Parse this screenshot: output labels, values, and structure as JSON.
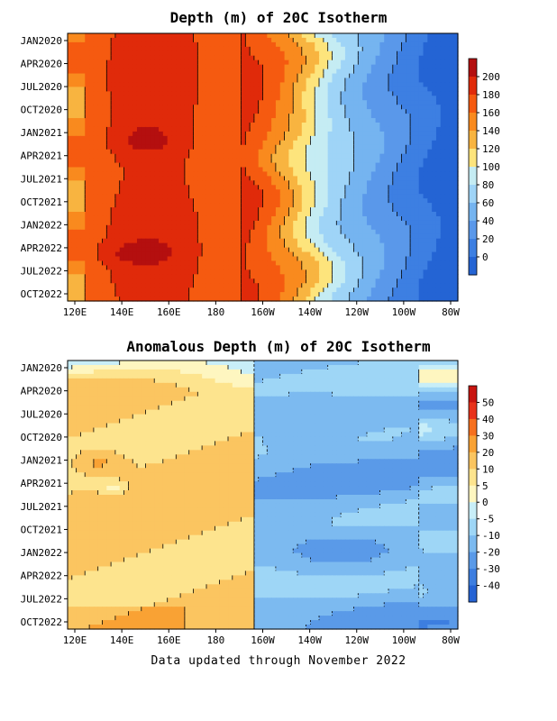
{
  "chart_data": [
    {
      "type": "heatmap",
      "title": "Depth (m) of 20C Isotherm",
      "x_tick_labels": [
        "120E",
        "140E",
        "160E",
        "180",
        "160W",
        "140W",
        "120W",
        "100W",
        "80W"
      ],
      "y_tick_labels": [
        "JAN2020",
        "APR2020",
        "JUL2020",
        "OCT2020",
        "JAN2021",
        "APR2021",
        "JUL2021",
        "OCT2021",
        "JAN2022",
        "APR2022",
        "JUL2022",
        "OCT2022"
      ],
      "colorbar_labels": [
        "200",
        "180",
        "160",
        "140",
        "120",
        "100",
        "80",
        "60",
        "40",
        "20",
        "0"
      ],
      "colorbar_colors": [
        "#b40f0f",
        "#e02a0a",
        "#f55a10",
        "#f98a1e",
        "#f8b440",
        "#fde47c",
        "#c5ecf3",
        "#9fd4f7",
        "#75b4f0",
        "#5a98ea",
        "#3d7fe2",
        "#2464d4"
      ],
      "x_lon": [
        120,
        140,
        160,
        180,
        200,
        220,
        240,
        260,
        280
      ],
      "contours": [
        {
          "level": "warm-edge",
          "points": [
            [
              0.02,
              0.0
            ],
            [
              0.07,
              0.05
            ],
            [
              0.04,
              0.3
            ],
            [
              0.07,
              0.55
            ],
            [
              0.04,
              0.8
            ],
            [
              0.03,
              1.0
            ]
          ]
        },
        {
          "level": "isotherm-120",
          "points": [
            [
              0.55,
              0.0
            ],
            [
              0.6,
              0.2
            ],
            [
              0.57,
              0.4
            ],
            [
              0.62,
              0.6
            ],
            [
              0.6,
              0.8
            ],
            [
              0.64,
              1.0
            ]
          ]
        },
        {
          "level": "isotherm-100",
          "points": [
            [
              0.63,
              0.0
            ],
            [
              0.68,
              0.25
            ],
            [
              0.66,
              0.5
            ],
            [
              0.7,
              0.75
            ],
            [
              0.68,
              1.0
            ]
          ]
        }
      ]
    },
    {
      "type": "heatmap",
      "title": "Anomalous Depth (m) of 20C Isotherm",
      "x_tick_labels": [
        "120E",
        "140E",
        "160E",
        "180",
        "160W",
        "140W",
        "120W",
        "100W",
        "80W"
      ],
      "y_tick_labels": [
        "JAN2020",
        "APR2020",
        "JUL2020",
        "OCT2020",
        "JAN2021",
        "APR2021",
        "JUL2021",
        "OCT2021",
        "JAN2022",
        "APR2022",
        "JUL2022",
        "OCT2022"
      ],
      "colorbar_labels": [
        "50",
        "40",
        "30",
        "20",
        "10",
        "5",
        "0",
        "-5",
        "-10",
        "-20",
        "-30",
        "-40"
      ],
      "colorbar_colors": [
        "#c8140f",
        "#e8321a",
        "#f6701e",
        "#f9a234",
        "#fbc560",
        "#fde48e",
        "#fef6c0",
        "#c8eef8",
        "#9ed6f6",
        "#7cbaf0",
        "#5a9ae8",
        "#3d7ee0",
        "#2563d4"
      ]
    }
  ],
  "footer": "Data updated through November 2022"
}
